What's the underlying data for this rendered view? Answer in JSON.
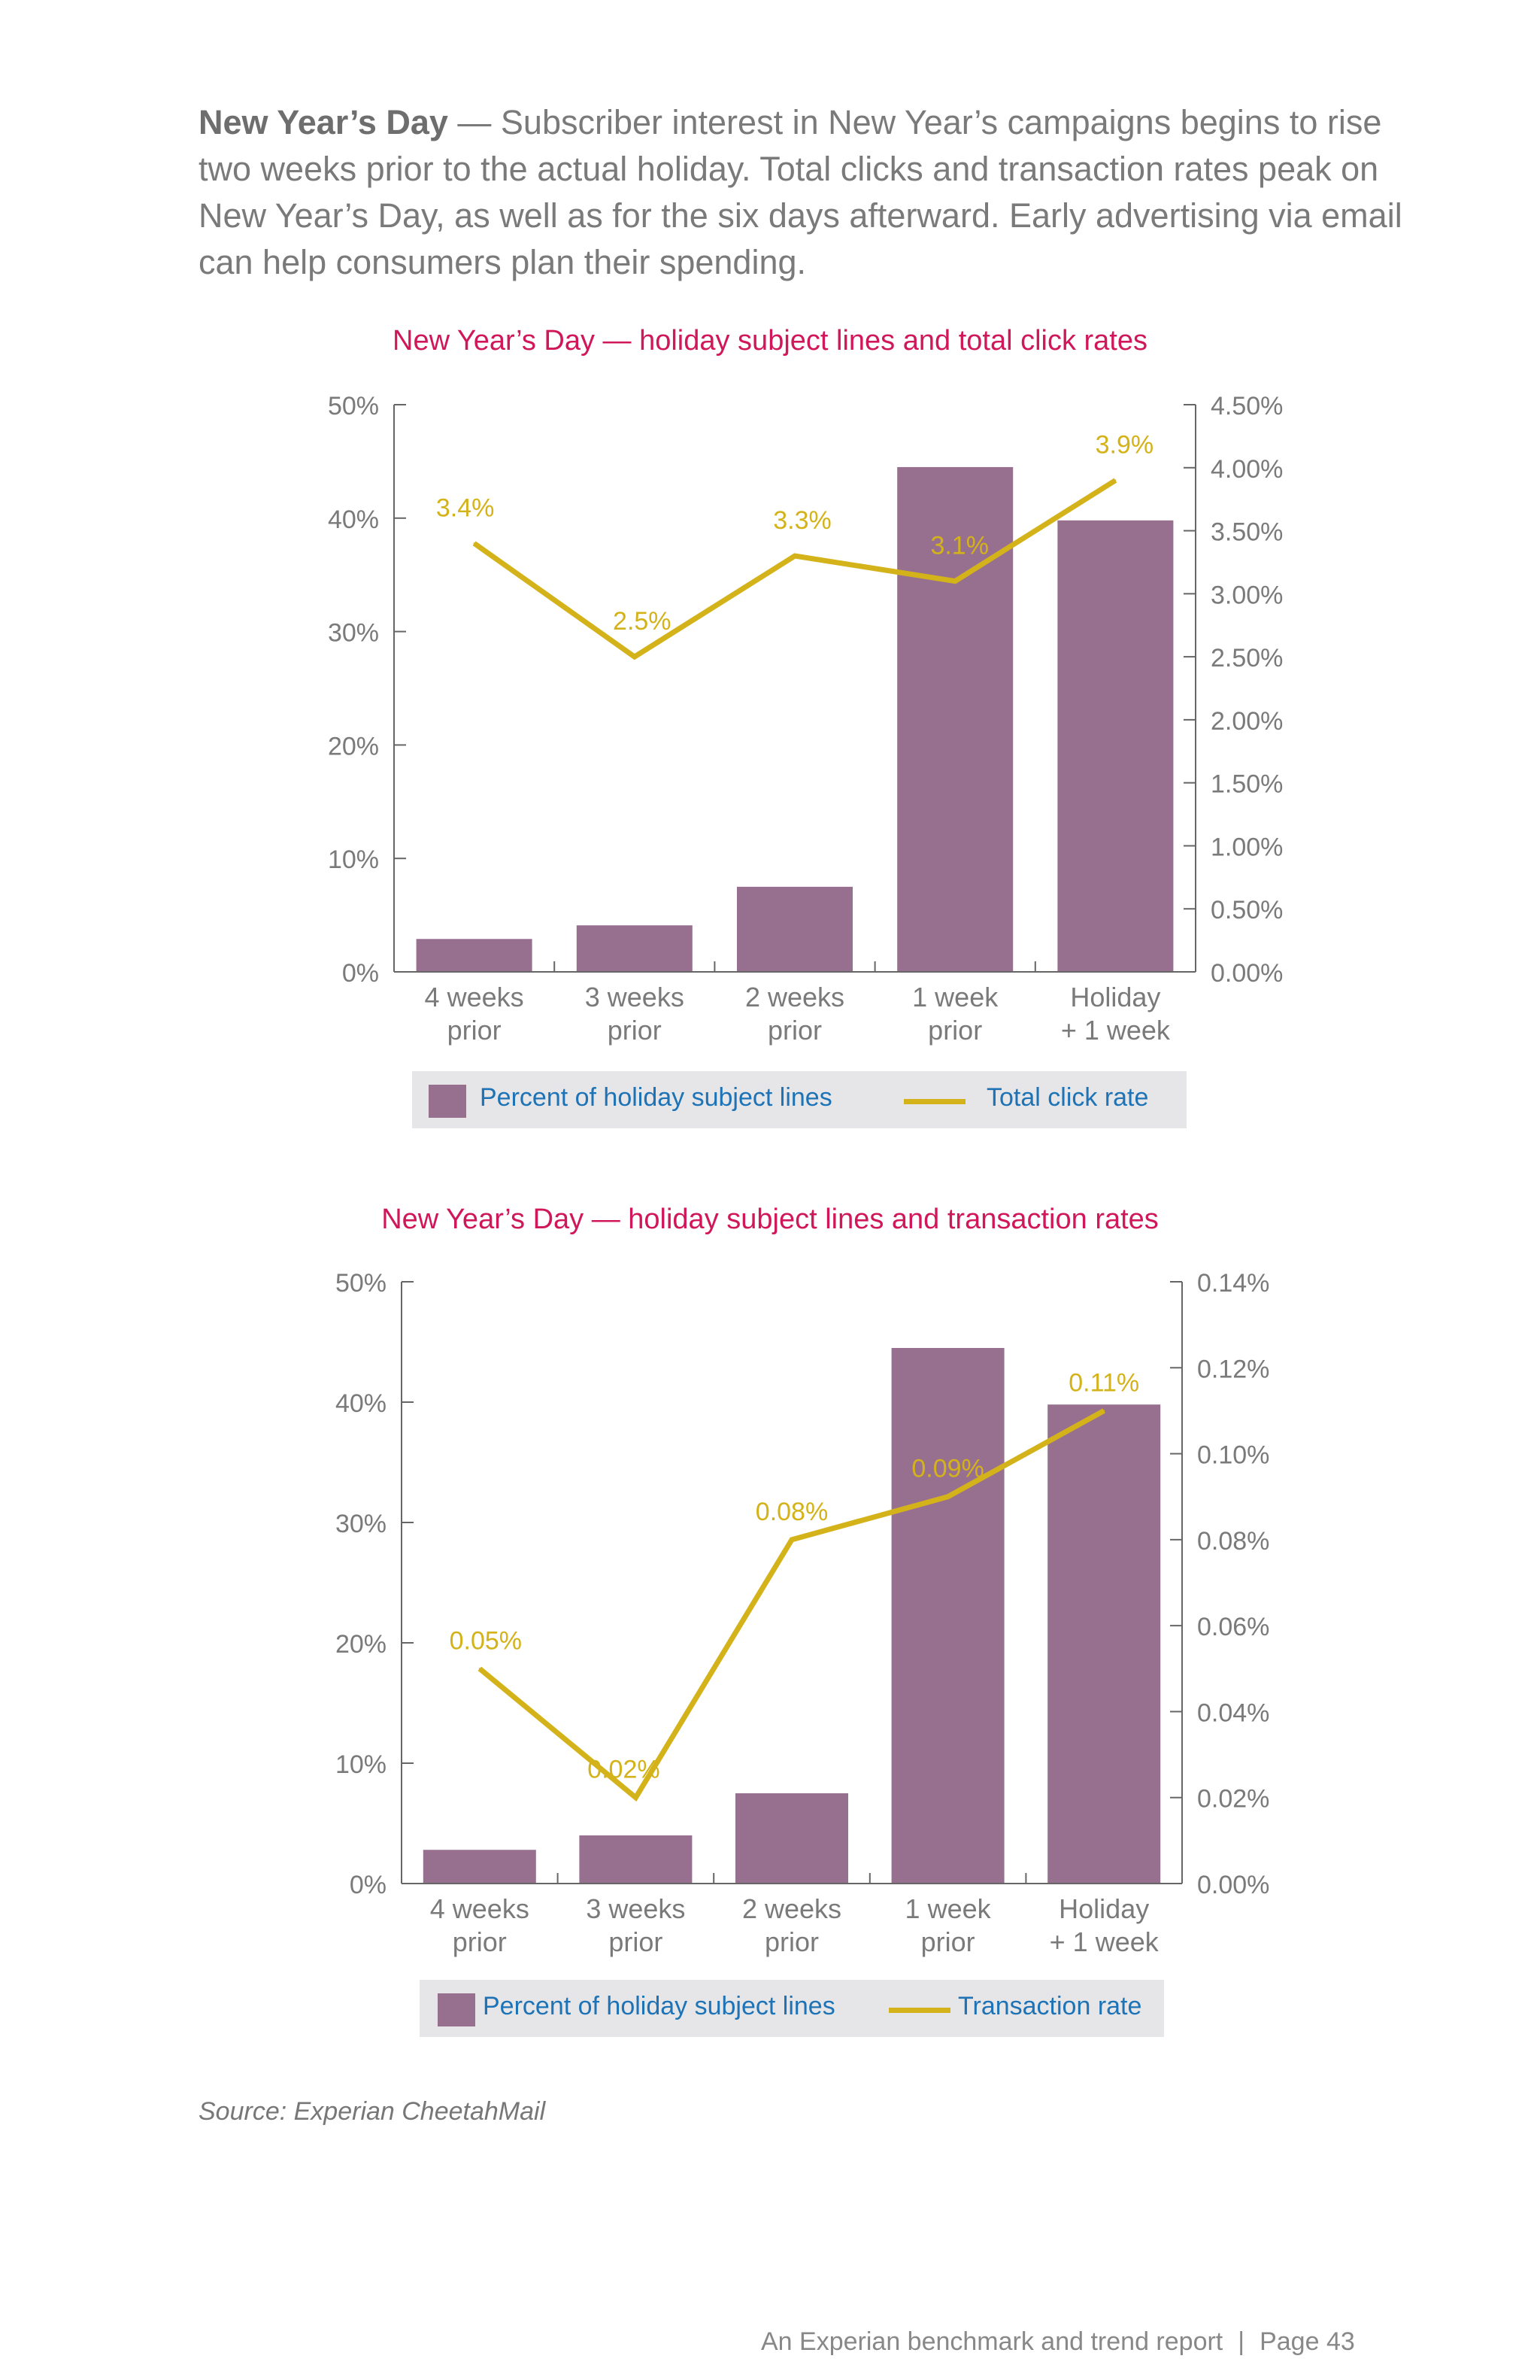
{
  "intro": {
    "lead": "New Year’s Day",
    "text": " — Subscriber interest in New Year’s campaigns begins to rise two weeks prior to the actual holiday. Total clicks and transaction rates peak on New Year’s Day, as well as for the six days afterward. Early advertising via email can help consumers plan their spending."
  },
  "colors": {
    "bar": "#97708f",
    "line": "#d4b21a",
    "title": "#d0175a",
    "legend_text": "#1d73b5"
  },
  "chart_data": [
    {
      "type": "bar",
      "title": "New Year’s Day — holiday subject lines and total click rates",
      "categories": [
        "4 weeks\nprior",
        "3 weeks\nprior",
        "2 weeks\nprior",
        "1 week\nprior",
        "Holiday\n+ 1 week"
      ],
      "left_axis": {
        "ticks": [
          "0%",
          "10%",
          "20%",
          "30%",
          "40%",
          "50%"
        ],
        "range": [
          0,
          50
        ]
      },
      "right_axis": {
        "ticks": [
          "0.00%",
          "0.50%",
          "1.00%",
          "1.50%",
          "2.00%",
          "2.50%",
          "3.00%",
          "3.50%",
          "4.00%",
          "4.50%"
        ],
        "range": [
          0,
          4.5
        ]
      },
      "series": [
        {
          "name": "Percent of holiday subject lines",
          "kind": "bar",
          "axis": "left",
          "values": [
            2.9,
            4.1,
            7.5,
            44.5,
            39.8
          ]
        },
        {
          "name": "Total click rate",
          "kind": "line",
          "axis": "right",
          "values": [
            3.4,
            2.5,
            3.3,
            3.1,
            3.9
          ],
          "labels": [
            "3.4%",
            "2.5%",
            "3.3%",
            "3.1%",
            "3.9%"
          ]
        }
      ]
    },
    {
      "type": "bar",
      "title": "New Year’s Day — holiday subject lines and transaction rates",
      "categories": [
        "4 weeks\nprior",
        "3 weeks\nprior",
        "2 weeks\nprior",
        "1 week\nprior",
        "Holiday\n+ 1 week"
      ],
      "left_axis": {
        "ticks": [
          "0%",
          "10%",
          "20%",
          "30%",
          "40%",
          "50%"
        ],
        "range": [
          0,
          50
        ]
      },
      "right_axis": {
        "ticks": [
          "0.00%",
          "0.02%",
          "0.04%",
          "0.06%",
          "0.08%",
          "0.10%",
          "0.12%",
          "0.14%"
        ],
        "range": [
          0,
          0.14
        ]
      },
      "series": [
        {
          "name": "Percent of holiday subject lines",
          "kind": "bar",
          "axis": "left",
          "values": [
            2.8,
            4.0,
            7.5,
            44.5,
            39.8
          ]
        },
        {
          "name": "Transaction rate",
          "kind": "line",
          "axis": "right",
          "values": [
            0.05,
            0.02,
            0.08,
            0.09,
            0.11
          ],
          "labels": [
            "0.05%",
            "0.02%",
            "0.08%",
            "0.09%",
            "0.11%"
          ]
        }
      ]
    }
  ],
  "source": "Source: Experian CheetahMail",
  "footer": {
    "report": "An Experian benchmark and trend report",
    "separator": "|",
    "page": "Page 43"
  }
}
